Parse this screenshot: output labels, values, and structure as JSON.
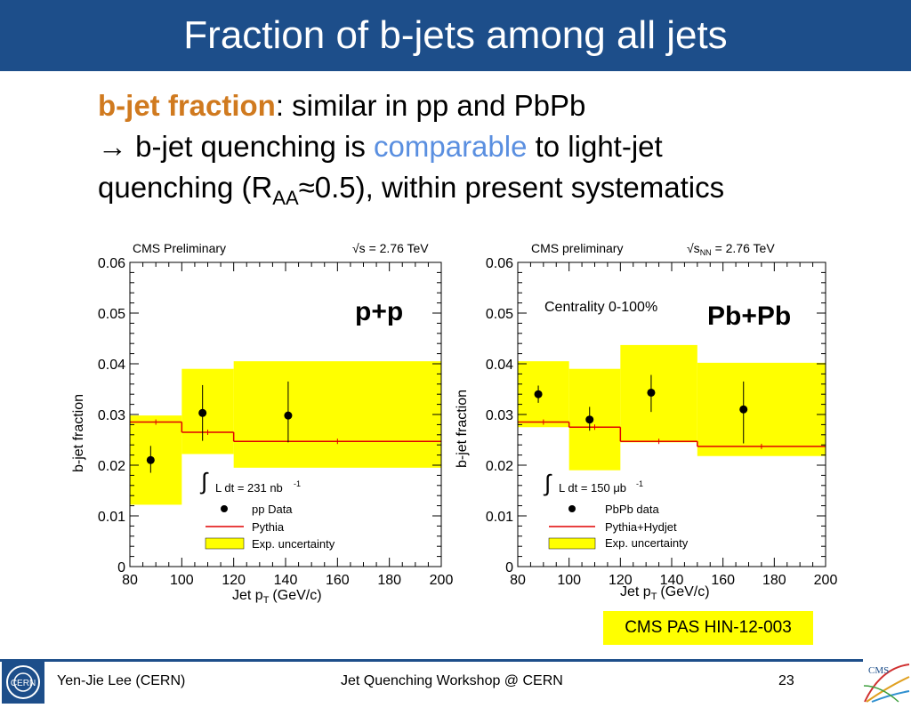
{
  "slide": {
    "title": "Fraction of b-jets among all jets",
    "line1_bold": "b-jet fraction",
    "line1_rest": ": similar in pp and PbPb",
    "line2_pre": "→ b-jet quenching is ",
    "line2_highlight": "comparable",
    "line2_post": " to light-jet",
    "line3_pre": "quenching (R",
    "line3_sub": "AA",
    "line3_post": "≈0.5), within present systematics",
    "reference": "CMS PAS HIN-12-003"
  },
  "footer": {
    "author": "Yen-Jie Lee (CERN)",
    "event": "Jet Quenching Workshop @ CERN",
    "page": "23",
    "cern_logo_text": "CERN",
    "cms_logo_text": "CMS"
  },
  "colors": {
    "band": "#ffff00",
    "mc": "#e00000",
    "title_bar": "#1d4e8a"
  },
  "chart_data": [
    {
      "type": "scatter",
      "header_left": "CMS Preliminary",
      "header_right": "√s = 2.76 TeV",
      "system_label": "p+p",
      "xlabel": "Jet p",
      "xlabel_sub": "T",
      "xlabel_unit": "(GeV/c)",
      "ylabel": "b-jet fraction",
      "xlim": [
        80,
        200
      ],
      "ylim": [
        0,
        0.06
      ],
      "xticks": [
        "80",
        "100",
        "120",
        "140",
        "160",
        "180",
        "200"
      ],
      "yticks": [
        "0",
        "0.01",
        "0.02",
        "0.03",
        "0.04",
        "0.05",
        "0.06"
      ],
      "legend": {
        "lumi": "L dt = 231 nb",
        "lumi_sup": "-1",
        "data": "pp Data",
        "mc": "Pythia",
        "band": "Exp. uncertainty"
      },
      "data_points": [
        {
          "x": 88,
          "y": 0.021,
          "ylo": 0.0185,
          "yhi": 0.0238
        },
        {
          "x": 108,
          "y": 0.0303,
          "ylo": 0.0248,
          "yhi": 0.0358
        },
        {
          "x": 141,
          "y": 0.0298,
          "ylo": 0.0245,
          "yhi": 0.0365
        }
      ],
      "bands": [
        {
          "x0": 80,
          "x1": 100,
          "lo": 0.0122,
          "hi": 0.0298
        },
        {
          "x0": 100,
          "x1": 120,
          "lo": 0.0222,
          "hi": 0.039
        },
        {
          "x0": 120,
          "x1": 200,
          "lo": 0.0195,
          "hi": 0.0405
        }
      ],
      "mc": [
        {
          "x0": 80,
          "x1": 100,
          "y": 0.0285
        },
        {
          "x0": 100,
          "x1": 120,
          "y": 0.0265
        },
        {
          "x0": 120,
          "x1": 200,
          "y": 0.0247
        }
      ]
    },
    {
      "type": "scatter",
      "header_left": "CMS preliminary",
      "header_right": "√s",
      "header_right_sub": "NN",
      "header_right_post": " = 2.76 TeV",
      "centrality": "Centrality 0-100%",
      "system_label": "Pb+Pb",
      "xlabel": "Jet p",
      "xlabel_sub": "T",
      "xlabel_unit": "(GeV/c)",
      "ylabel": "b-jet fraction",
      "xlim": [
        80,
        200
      ],
      "ylim": [
        0,
        0.06
      ],
      "xticks": [
        "80",
        "100",
        "120",
        "140",
        "160",
        "180",
        "200"
      ],
      "yticks": [
        "0",
        "0.01",
        "0.02",
        "0.03",
        "0.04",
        "0.05",
        "0.06"
      ],
      "legend": {
        "lumi": "L dt = 150 μb",
        "lumi_sup": "-1",
        "data": "PbPb data",
        "mc": "Pythia+Hydjet",
        "band": "Exp. uncertainty"
      },
      "data_points": [
        {
          "x": 88,
          "y": 0.034,
          "ylo": 0.0323,
          "yhi": 0.0357
        },
        {
          "x": 108,
          "y": 0.029,
          "ylo": 0.0268,
          "yhi": 0.0315
        },
        {
          "x": 132,
          "y": 0.0343,
          "ylo": 0.0305,
          "yhi": 0.0378
        },
        {
          "x": 168,
          "y": 0.031,
          "ylo": 0.0243,
          "yhi": 0.0365
        }
      ],
      "bands": [
        {
          "x0": 80,
          "x1": 100,
          "lo": 0.0275,
          "hi": 0.0405
        },
        {
          "x0": 100,
          "x1": 120,
          "lo": 0.019,
          "hi": 0.039
        },
        {
          "x0": 120,
          "x1": 150,
          "lo": 0.0245,
          "hi": 0.0437
        },
        {
          "x0": 150,
          "x1": 200,
          "lo": 0.0218,
          "hi": 0.0402
        }
      ],
      "mc": [
        {
          "x0": 80,
          "x1": 100,
          "y": 0.0285
        },
        {
          "x0": 100,
          "x1": 120,
          "y": 0.0275
        },
        {
          "x0": 120,
          "x1": 150,
          "y": 0.0247
        },
        {
          "x0": 150,
          "x1": 200,
          "y": 0.0237
        }
      ]
    }
  ]
}
